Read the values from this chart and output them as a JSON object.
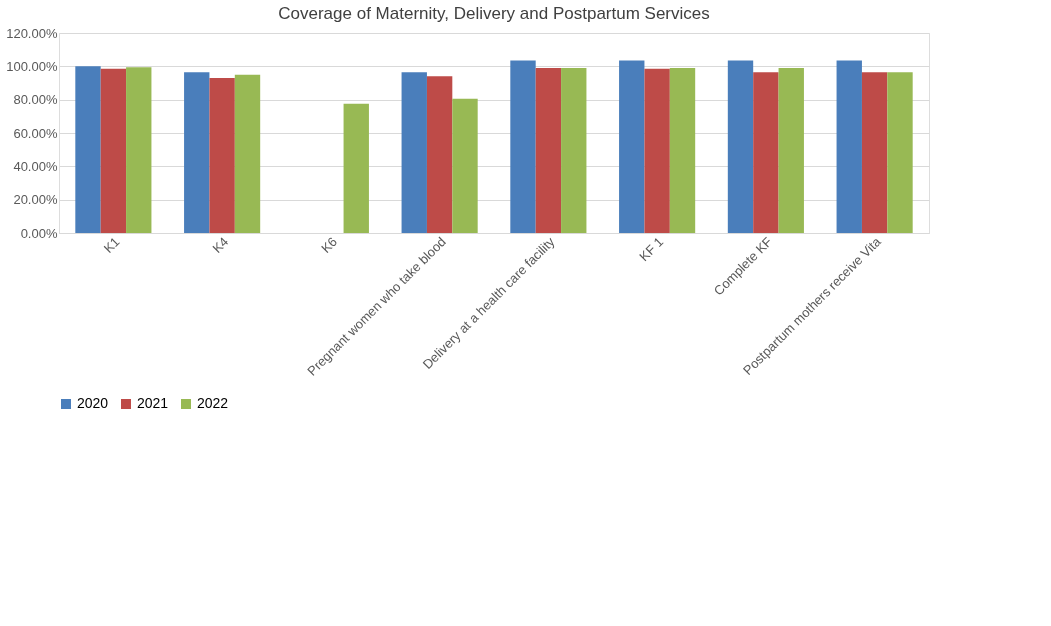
{
  "chart_data": {
    "type": "bar",
    "title": "Coverage of Maternity, Delivery and Postpartum Services",
    "categories": [
      "K1",
      "K4",
      "K6",
      "Pregnant women who take blood",
      "Delivery at a health care facility",
      "KF 1",
      "Complete KF",
      "Postpartum mothers receive Vita"
    ],
    "series": [
      {
        "name": "2020",
        "color": "#4a7ebb",
        "values": [
          100,
          96.5,
          null,
          96.5,
          103.5,
          103.5,
          103.5,
          103.5
        ]
      },
      {
        "name": "2021",
        "color": "#be4b48",
        "values": [
          98.5,
          93,
          null,
          94,
          99,
          98.5,
          96.5,
          96.5
        ]
      },
      {
        "name": "2022",
        "color": "#98b954",
        "values": [
          99.5,
          95,
          77.5,
          80.5,
          99,
          99,
          99,
          96.5
        ]
      }
    ],
    "ylim": [
      0,
      120
    ],
    "yticks": [
      {
        "value": 0,
        "label": "0.00%"
      },
      {
        "value": 20,
        "label": "20.00%"
      },
      {
        "value": 40,
        "label": "40.00%"
      },
      {
        "value": 60,
        "label": "60.00%"
      },
      {
        "value": 80,
        "label": "80.00%"
      },
      {
        "value": 100,
        "label": "100.00%"
      },
      {
        "value": 120,
        "label": "120.00%"
      }
    ],
    "grid": "y",
    "legend": "bottom"
  }
}
